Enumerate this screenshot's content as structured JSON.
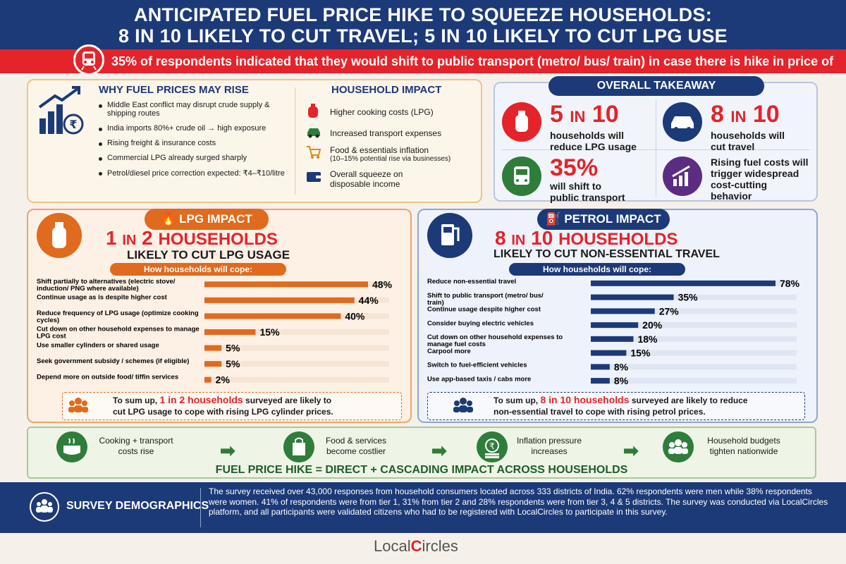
{
  "header": {
    "line1": "ANTICIPATED FUEL PRICE HIKE TO SQUEEZE HOUSEHOLDS:",
    "line2": "8 IN 10 LIKELY TO CUT TRAVEL; 5 IN 10 LIKELY TO CUT LPG USE"
  },
  "banner": "35% of respondents indicated that they would shift to public transport (metro/ bus/ train) in case there is hike in price of petrol",
  "why": {
    "title": "WHY FUEL PRICES MAY RISE",
    "items": [
      "Middle East conflict may disrupt crude supply & shipping routes",
      "India imports 80%+ crude oil → high exposure",
      "Rising freight & insurance costs",
      "Commercial LPG already surged sharply",
      "Petrol/diesel price correction expected: ₹4–₹10/litre"
    ]
  },
  "impact": {
    "title": "HOUSEHOLD IMPACT",
    "items": [
      "Higher cooking costs (LPG)",
      "Increased transport expenses",
      "Food & essentials inflation",
      "(10–15% potential rise via businesses)",
      "Overall squeeze on",
      "disposable income"
    ]
  },
  "takeaway": {
    "title": "OVERALL TAKEAWAY",
    "a_num": "5",
    "a_in": "IN",
    "a_den": "10",
    "a_txt1": "households will",
    "a_txt2": "reduce LPG usage",
    "b_num": "8",
    "b_in": "IN",
    "b_den": "10",
    "b_txt1": "households will",
    "b_txt2": "cut travel",
    "c_num": "35%",
    "c_txt1": "will shift to",
    "c_txt2": "public transport",
    "d_txt1": "Rising fuel costs will",
    "d_txt2": "trigger widespread",
    "d_txt3": "cost-cutting",
    "d_txt4": "behavior"
  },
  "lpg": {
    "pill": "LPG IMPACT",
    "head_num": "1",
    "head_in": "IN",
    "head_den": "2",
    "head_word": "HOUSEHOLDS",
    "sub": "LIKELY TO CUT LPG USAGE",
    "cope": "How households will cope:",
    "sum1": "To sum up,",
    "sum_hl": "1 in 2 households",
    "sum2": "surveyed are likely to",
    "sum3": "cut LPG usage to cope with rising LPG cylinder prices."
  },
  "petrol": {
    "pill": "PETROL IMPACT",
    "head_num": "8",
    "head_in": "IN",
    "head_den": "10",
    "head_word": "HOUSEHOLDS",
    "sub": "LIKELY TO CUT NON-ESSENTIAL TRAVEL",
    "cope": "How households will cope:",
    "sum1": "To sum up,",
    "sum_hl": "8 in 10 households",
    "sum2": "surveyed are likely to reduce",
    "sum3": "non-essential travel to cope with rising petrol prices."
  },
  "chart_data": [
    {
      "type": "bar",
      "title": "How households will cope:",
      "categories": [
        "Shift partially to alternatives (electric stove/ induction/ PNG where available)",
        "Continue usage as is despite higher cost",
        "Reduce frequency of LPG usage (optimize cooking cycles)",
        "Cut down on other household expenses to manage LPG cost",
        "Use smaller cylinders or shared usage",
        "Seek government subsidy / schemes (if eligible)",
        "Depend more on outside food/ tiffin services"
      ],
      "values": [
        48,
        44,
        40,
        15,
        5,
        5,
        2
      ],
      "labels": [
        "48%",
        "44%",
        "40%",
        "15%",
        "5%",
        "5%",
        "2%"
      ],
      "color": "#e06a1d"
    },
    {
      "type": "bar",
      "title": "How households will cope:",
      "categories": [
        "Reduce non-essential travel",
        "Shift to public transport (metro/ bus/ train)",
        "Continue usage despite higher cost",
        "Consider buying electric vehicles",
        "Cut down on other household expenses to manage fuel costs",
        "Carpool more",
        "Switch to fuel-efficient vehicles",
        "Use app-based taxis / cabs more"
      ],
      "values": [
        78,
        35,
        27,
        20,
        18,
        15,
        8,
        8
      ],
      "labels": [
        "78%",
        "35%",
        "27%",
        "20%",
        "18%",
        "15%",
        "8%",
        "8%"
      ],
      "color": "#1c3a78"
    }
  ],
  "flow": {
    "s1": "Cooking + transport costs rise",
    "s2": "Food & services become costlier",
    "s3": "Inflation pressure increases",
    "s4": "Household budgets tighten nationwide",
    "conclusion": "FUEL PRICE HIKE = DIRECT + CASCADING IMPACT ACROSS HOUSEHOLDS"
  },
  "footer": {
    "title": "SURVEY DEMOGRAPHICS",
    "text": "The survey received over 43,000 responses from household consumers located across 333 districts of India. 62% respondents were men while 38% respondents were women. 41% of respondents were from tier 1, 31% from tier 2 and 28% respondents were from tier 3, 4 & 5 districts. The survey was conducted via LocalCircles platform, and all participants were validated citizens who had to be registered with LocalCircles to participate in this survey."
  },
  "logo": {
    "left": "Local",
    "right": "ircles"
  },
  "colors": {
    "navy": "#1c3a78",
    "red": "#e5232a",
    "orange": "#e06a1d",
    "green": "#2f7d3a",
    "purple": "#5a2d82"
  }
}
